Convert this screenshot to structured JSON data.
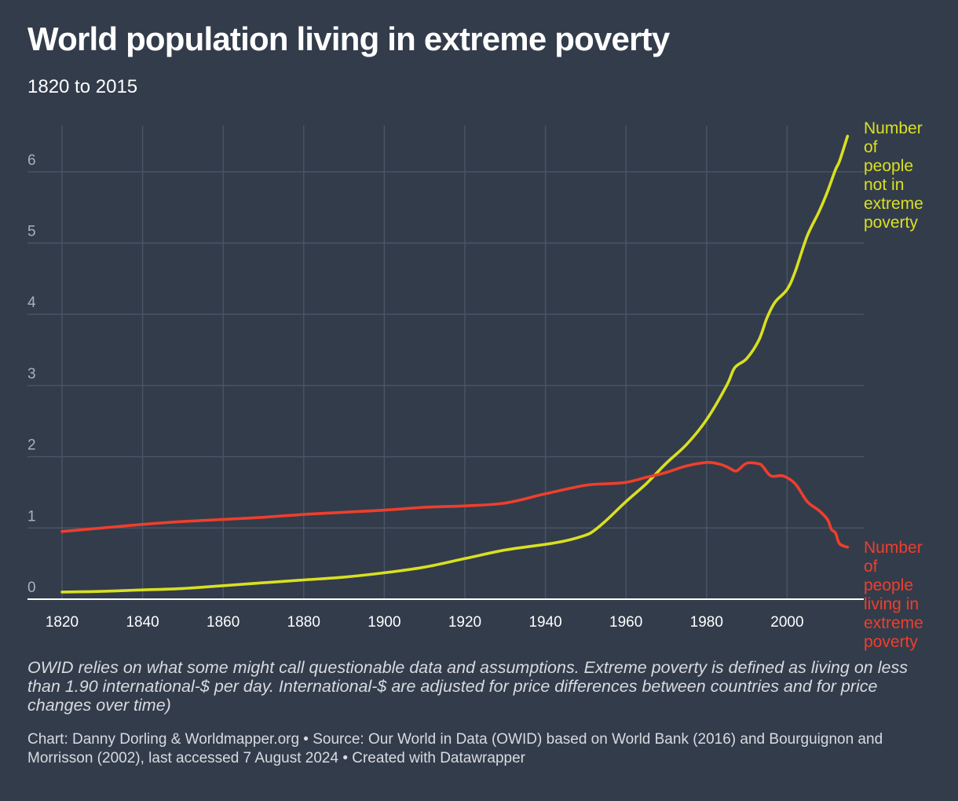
{
  "title": "World population living in extreme poverty",
  "subtitle": "1820 to 2015",
  "note": "OWID relies on what some might call questionable data and assumptions. Extreme poverty is defined as living on less than 1.90 international-$ per day. International-$ are adjusted for price differences between countries and for price changes over time)",
  "source": "Chart: Danny Dorling & Worldmapper.org • Source: Our World in Data (OWID) based on World Bank (2016) and Bourguignon and Morrisson (2002), last accessed 7 August 2024 • Created with Datawrapper",
  "chart_data": {
    "type": "line",
    "title": "World population living in extreme poverty",
    "subtitle": "1820 to 2015",
    "xlabel": "",
    "ylabel": "",
    "xlim": [
      1820,
      2015
    ],
    "ylim": [
      0,
      6.5
    ],
    "x_ticks": [
      1820,
      1840,
      1860,
      1880,
      1900,
      1920,
      1940,
      1960,
      1980,
      2000
    ],
    "y_ticks": [
      0,
      1,
      2,
      3,
      4,
      5,
      6
    ],
    "grid": true,
    "legend": "direct labels at line ends",
    "series": [
      {
        "name": "Number of people not in extreme poverty",
        "color": "#d9e021",
        "points": [
          [
            1820,
            0.1
          ],
          [
            1830,
            0.11
          ],
          [
            1840,
            0.13
          ],
          [
            1850,
            0.15
          ],
          [
            1860,
            0.19
          ],
          [
            1870,
            0.23
          ],
          [
            1880,
            0.27
          ],
          [
            1890,
            0.31
          ],
          [
            1900,
            0.37
          ],
          [
            1910,
            0.45
          ],
          [
            1920,
            0.57
          ],
          [
            1930,
            0.69
          ],
          [
            1940,
            0.77
          ],
          [
            1945,
            0.82
          ],
          [
            1950,
            0.9
          ],
          [
            1952,
            0.96
          ],
          [
            1955,
            1.1
          ],
          [
            1960,
            1.37
          ],
          [
            1965,
            1.62
          ],
          [
            1970,
            1.91
          ],
          [
            1975,
            2.17
          ],
          [
            1980,
            2.52
          ],
          [
            1985,
            3.0
          ],
          [
            1987,
            3.25
          ],
          [
            1990,
            3.38
          ],
          [
            1993,
            3.64
          ],
          [
            1995,
            3.95
          ],
          [
            1997,
            4.17
          ],
          [
            2000,
            4.35
          ],
          [
            2002,
            4.6
          ],
          [
            2005,
            5.1
          ],
          [
            2008,
            5.45
          ],
          [
            2010,
            5.72
          ],
          [
            2012,
            6.03
          ],
          [
            2013,
            6.15
          ],
          [
            2015,
            6.5
          ]
        ]
      },
      {
        "name": "Number of people living in extreme poverty",
        "color": "#ee3f2c",
        "points": [
          [
            1820,
            0.95
          ],
          [
            1830,
            1.0
          ],
          [
            1840,
            1.05
          ],
          [
            1850,
            1.09
          ],
          [
            1860,
            1.12
          ],
          [
            1870,
            1.15
          ],
          [
            1880,
            1.19
          ],
          [
            1890,
            1.22
          ],
          [
            1900,
            1.25
          ],
          [
            1910,
            1.29
          ],
          [
            1920,
            1.31
          ],
          [
            1930,
            1.35
          ],
          [
            1940,
            1.48
          ],
          [
            1950,
            1.6
          ],
          [
            1955,
            1.62
          ],
          [
            1960,
            1.64
          ],
          [
            1965,
            1.71
          ],
          [
            1970,
            1.78
          ],
          [
            1975,
            1.87
          ],
          [
            1980,
            1.92
          ],
          [
            1983,
            1.9
          ],
          [
            1985,
            1.86
          ],
          [
            1987,
            1.8
          ],
          [
            1988,
            1.82
          ],
          [
            1990,
            1.91
          ],
          [
            1993,
            1.9
          ],
          [
            1994,
            1.86
          ],
          [
            1996,
            1.73
          ],
          [
            1999,
            1.73
          ],
          [
            2002,
            1.62
          ],
          [
            2005,
            1.37
          ],
          [
            2008,
            1.24
          ],
          [
            2010,
            1.12
          ],
          [
            2011,
            0.98
          ],
          [
            2012,
            0.93
          ],
          [
            2013,
            0.78
          ],
          [
            2015,
            0.73
          ]
        ]
      }
    ],
    "labels": [
      {
        "series": 0,
        "lines": [
          "Number",
          "of",
          "people",
          "not in",
          "extreme",
          "poverty"
        ]
      },
      {
        "series": 1,
        "lines": [
          "Number",
          "of",
          "people",
          "living in",
          "extreme",
          "poverty"
        ]
      }
    ]
  }
}
